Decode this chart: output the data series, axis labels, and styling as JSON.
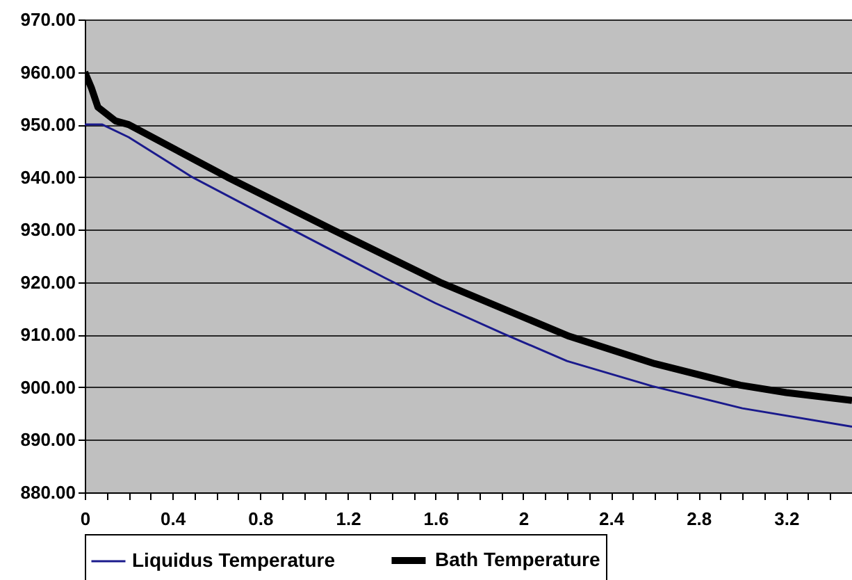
{
  "chart_data": {
    "type": "line",
    "xlim": [
      0,
      3.5
    ],
    "xticks": [
      0,
      {
        "value": 0.1,
        "label": null
      },
      {
        "value": 0.2,
        "label": null
      },
      {
        "value": 0.3,
        "label": null
      },
      0.4,
      {
        "value": 0.5,
        "label": null
      },
      {
        "value": 0.6,
        "label": null
      },
      {
        "value": 0.7,
        "label": null
      },
      0.8,
      {
        "value": 0.9,
        "label": null
      },
      {
        "value": 1.0,
        "label": null
      },
      {
        "value": 1.1,
        "label": null
      },
      1.2,
      {
        "value": 1.3,
        "label": null
      },
      {
        "value": 1.4,
        "label": null
      },
      {
        "value": 1.5,
        "label": null
      },
      1.6,
      {
        "value": 1.7,
        "label": null
      },
      {
        "value": 1.8,
        "label": null
      },
      {
        "value": 1.9,
        "label": null
      },
      2,
      {
        "value": 2.1,
        "label": null
      },
      {
        "value": 2.2,
        "label": null
      },
      {
        "value": 2.3,
        "label": null
      },
      2.4,
      {
        "value": 2.5,
        "label": null
      },
      {
        "value": 2.6,
        "label": null
      },
      {
        "value": 2.7,
        "label": null
      },
      2.8,
      {
        "value": 2.9,
        "label": null
      },
      {
        "value": 3.0,
        "label": null
      },
      {
        "value": 3.1,
        "label": null
      },
      3.2,
      {
        "value": 3.3,
        "label": null
      },
      {
        "value": 3.4,
        "label": null
      },
      {
        "value": 3.5,
        "label": null
      }
    ],
    "ylim": [
      880,
      970
    ],
    "yticks": [
      {
        "value": 880,
        "label": "880.00"
      },
      {
        "value": 890,
        "label": "890.00"
      },
      {
        "value": 900,
        "label": "900.00"
      },
      {
        "value": 910,
        "label": "910.00"
      },
      {
        "value": 920,
        "label": "920.00"
      },
      {
        "value": 930,
        "label": "930.00"
      },
      {
        "value": 940,
        "label": "940.00"
      },
      {
        "value": 950,
        "label": "950.00"
      },
      {
        "value": 960,
        "label": "960.00"
      },
      {
        "value": 970,
        "label": "970.00"
      }
    ],
    "grid": "y",
    "legend": "bottom",
    "series": [
      {
        "name": "Liquidus Temperature",
        "color": "#1a1a8c",
        "x": [
          0,
          0.08,
          0.2,
          0.49,
          0.9,
          1.37,
          1.6,
          1.91,
          2.2,
          2.59,
          3.0,
          3.5
        ],
        "values": [
          950,
          950,
          947.6,
          940,
          931,
          920.8,
          916,
          910.2,
          905,
          900.2,
          896,
          892.5
        ]
      },
      {
        "name": "Bath Temperature",
        "color": "#000000",
        "x": [
          0,
          0.03,
          0.06,
          0.14,
          0.2,
          0.65,
          1.13,
          1.62,
          2.21,
          2.6,
          2.99,
          3.2,
          3.5
        ],
        "values": [
          960,
          957,
          953.3,
          950.7,
          950,
          940,
          930,
          920,
          909.7,
          904.5,
          900.4,
          899,
          897.5
        ]
      }
    ]
  }
}
